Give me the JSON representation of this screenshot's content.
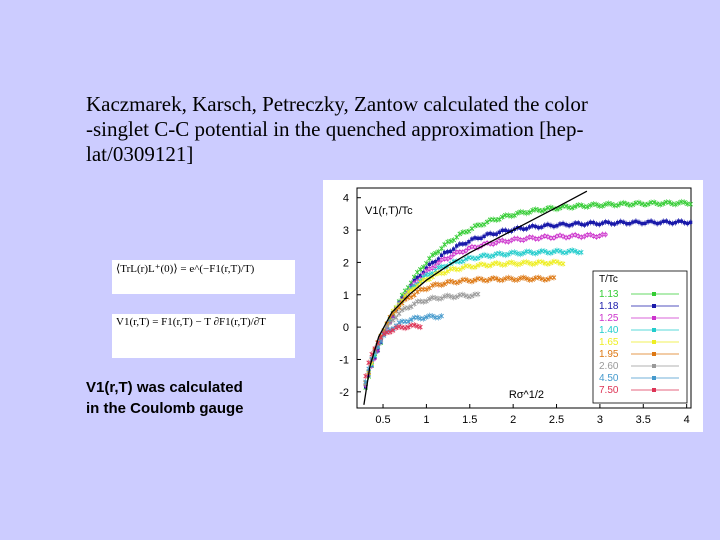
{
  "slide": {
    "text_line1": "Kaczmarek, Karsch, Petreczky, Zantow calculated the color",
    "text_line2": "-singlet C-C potential in the quenched approximation [hep-",
    "text_line3": "lat/0309121]",
    "formula1": "⟨TrL(r)L⁺(0)⟩ = e^(−F1(r,T)/T)",
    "formula2": "V1(r,T) = F1(r,T) − T ∂F1(r,T)/∂T",
    "note_line1": "V1(r,T) was calculated",
    "note_line2": "in the Coulomb gauge",
    "note_prefix": "V",
    "note_sub": "1"
  },
  "chart_data": {
    "type": "scatter",
    "ylabel": "V1(r,T)/Tc",
    "xlabel": "Rσ^1/2",
    "xlim": [
      0.2,
      4.05
    ],
    "ylim": [
      -2.5,
      4.3
    ],
    "x_ticks": [
      "0.5",
      "1",
      "1.5",
      "2",
      "2.5",
      "3",
      "3.5",
      "4"
    ],
    "y_ticks": [
      "4",
      "3",
      "2",
      "1",
      "0",
      "-1",
      "-2"
    ],
    "legend_title": "T/Tc",
    "legend_position": "right",
    "series": [
      {
        "name": "1.13",
        "color": "#33cc33",
        "marker": "x",
        "xmax": 4.05,
        "plateau": 3.85,
        "rate": 1.6
      },
      {
        "name": "1.18",
        "color": "#1a1aaa",
        "marker": "square",
        "xmax": 4.05,
        "plateau": 3.25,
        "rate": 1.8
      },
      {
        "name": "1.25",
        "color": "#cc33cc",
        "marker": "circle",
        "xmax": 3.1,
        "plateau": 2.85,
        "rate": 2.0
      },
      {
        "name": "1.40",
        "color": "#22cccc",
        "marker": "star",
        "xmax": 2.8,
        "plateau": 2.35,
        "rate": 2.4
      },
      {
        "name": "1.65",
        "color": "#eeee22",
        "marker": "star",
        "xmax": 2.6,
        "plateau": 2.0,
        "rate": 2.8
      },
      {
        "name": "1.95",
        "color": "#dd7711",
        "marker": "x",
        "xmax": 2.5,
        "plateau": 1.5,
        "rate": 3.4
      },
      {
        "name": "2.60",
        "color": "#999999",
        "marker": "x",
        "xmax": 1.6,
        "plateau": 1.0,
        "rate": 4.0
      },
      {
        "name": "4.50",
        "color": "#4499cc",
        "marker": "x",
        "xmax": 1.2,
        "plateau": 0.35,
        "rate": 5.5
      },
      {
        "name": "7.50",
        "color": "#dd3355",
        "marker": "x",
        "xmax": 0.95,
        "plateau": 0.05,
        "rate": 8.0
      }
    ],
    "zero_T_curve": {
      "description": "",
      "color": "#000000",
      "points": [
        [
          0.28,
          -2.4
        ],
        [
          0.35,
          -1.2
        ],
        [
          0.45,
          -0.3
        ],
        [
          0.6,
          0.45
        ],
        [
          0.8,
          1.0
        ],
        [
          1.0,
          1.45
        ],
        [
          1.25,
          1.9
        ],
        [
          1.5,
          2.3
        ],
        [
          2.0,
          3.0
        ],
        [
          2.5,
          3.7
        ],
        [
          2.85,
          4.2
        ]
      ]
    }
  }
}
